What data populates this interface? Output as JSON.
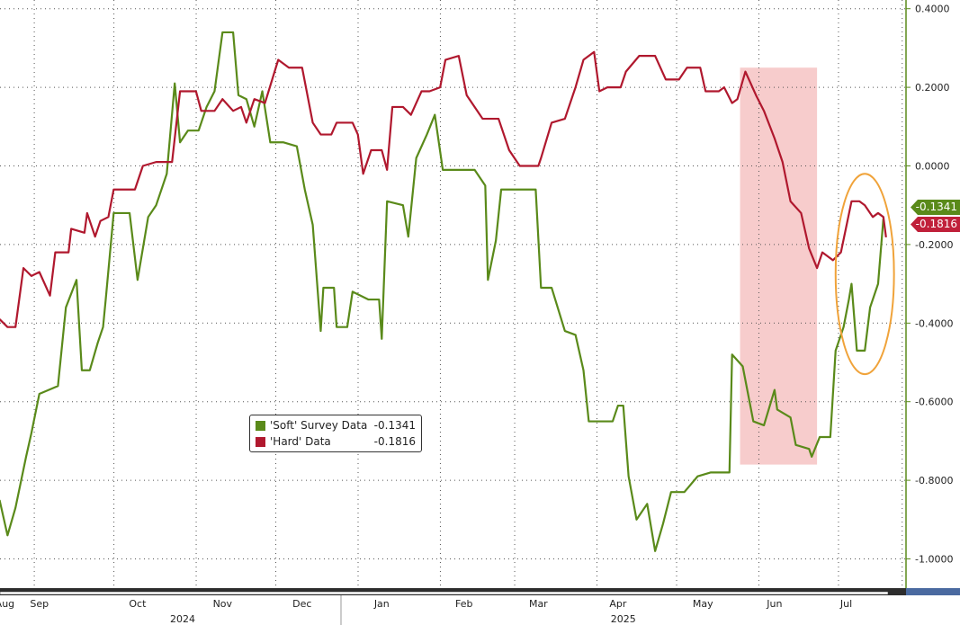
{
  "chart_data": {
    "type": "line",
    "title": "",
    "xlabel": "",
    "ylabel": "",
    "ylim": [
      -1.0,
      0.4
    ],
    "x_unit": "days since 2024-08-01",
    "yticks": [
      "0.4000",
      "0.2000",
      "0.0000",
      "-0.2000",
      "-0.4000",
      "-0.6000",
      "-0.8000",
      "-1.0000"
    ],
    "ytick_values": [
      0.4,
      0.2,
      0,
      -0.2,
      -0.4,
      -0.6,
      -0.8,
      -1.0
    ],
    "xticks": [
      {
        "label": "Aug",
        "day": 12
      },
      {
        "label": "Sep",
        "day": 25
      },
      {
        "label": "Oct",
        "day": 62
      },
      {
        "label": "Nov",
        "day": 94
      },
      {
        "label": "Dec",
        "day": 124
      },
      {
        "label": "Jan",
        "day": 154
      },
      {
        "label": "Feb",
        "day": 185
      },
      {
        "label": "Mar",
        "day": 213
      },
      {
        "label": "Apr",
        "day": 243
      },
      {
        "label": "May",
        "day": 275
      },
      {
        "label": "Jun",
        "day": 302
      },
      {
        "label": "Jul",
        "day": 329
      }
    ],
    "years": [
      {
        "label": "2024",
        "day": 79
      },
      {
        "label": "2025",
        "day": 245
      }
    ],
    "grid": true,
    "legend_position": "center-left",
    "series": [
      {
        "name": "'Soft' Survey Data",
        "last": "-0.1341",
        "color": "#5a8a1a",
        "points": [
          [
            10,
            -0.85
          ],
          [
            13,
            -0.94
          ],
          [
            16,
            -0.87
          ],
          [
            20,
            -0.74
          ],
          [
            22,
            -0.68
          ],
          [
            25,
            -0.58
          ],
          [
            32,
            -0.56
          ],
          [
            35,
            -0.36
          ],
          [
            39,
            -0.29
          ],
          [
            41,
            -0.52
          ],
          [
            44,
            -0.52
          ],
          [
            47,
            -0.45
          ],
          [
            49,
            -0.41
          ],
          [
            50,
            -0.34
          ],
          [
            53,
            -0.12
          ],
          [
            59,
            -0.12
          ],
          [
            62,
            -0.29
          ],
          [
            66,
            -0.13
          ],
          [
            69,
            -0.1
          ],
          [
            73,
            -0.02
          ],
          [
            76,
            0.21
          ],
          [
            78,
            0.06
          ],
          [
            81,
            0.09
          ],
          [
            85,
            0.09
          ],
          [
            88,
            0.15
          ],
          [
            91,
            0.19
          ],
          [
            94,
            0.34
          ],
          [
            98,
            0.34
          ],
          [
            100,
            0.18
          ],
          [
            103,
            0.17
          ],
          [
            106,
            0.1
          ],
          [
            109,
            0.19
          ],
          [
            112,
            0.06
          ],
          [
            117,
            0.06
          ],
          [
            122,
            0.05
          ],
          [
            125,
            -0.06
          ],
          [
            128,
            -0.15
          ],
          [
            131,
            -0.42
          ],
          [
            132,
            -0.31
          ],
          [
            136,
            -0.31
          ],
          [
            137,
            -0.41
          ],
          [
            141,
            -0.41
          ],
          [
            143,
            -0.32
          ],
          [
            149,
            -0.34
          ],
          [
            153,
            -0.34
          ],
          [
            154,
            -0.44
          ],
          [
            156,
            -0.09
          ],
          [
            162,
            -0.1
          ],
          [
            164,
            -0.18
          ],
          [
            167,
            0.02
          ],
          [
            171,
            0.08
          ],
          [
            174,
            0.13
          ],
          [
            177,
            -0.01
          ],
          [
            189,
            -0.01
          ],
          [
            193,
            -0.05
          ],
          [
            194,
            -0.29
          ],
          [
            197,
            -0.19
          ],
          [
            199,
            -0.06
          ],
          [
            205,
            -0.06
          ],
          [
            212,
            -0.06
          ],
          [
            214,
            -0.31
          ],
          [
            218,
            -0.31
          ],
          [
            223,
            -0.42
          ],
          [
            227,
            -0.43
          ],
          [
            230,
            -0.52
          ],
          [
            232,
            -0.65
          ],
          [
            241,
            -0.65
          ],
          [
            243,
            -0.61
          ],
          [
            245,
            -0.61
          ],
          [
            247,
            -0.79
          ],
          [
            250,
            -0.9
          ],
          [
            254,
            -0.86
          ],
          [
            257,
            -0.98
          ],
          [
            260,
            -0.91
          ],
          [
            263,
            -0.83
          ],
          [
            268,
            -0.83
          ],
          [
            273,
            -0.79
          ],
          [
            278,
            -0.78
          ],
          [
            285,
            -0.78
          ],
          [
            286,
            -0.48
          ],
          [
            290,
            -0.51
          ],
          [
            294,
            -0.65
          ],
          [
            298,
            -0.66
          ],
          [
            302,
            -0.57
          ],
          [
            303,
            -0.62
          ],
          [
            308,
            -0.64
          ],
          [
            310,
            -0.71
          ],
          [
            315,
            -0.72
          ],
          [
            316,
            -0.74
          ],
          [
            319,
            -0.69
          ],
          [
            323,
            -0.69
          ],
          [
            325,
            -0.47
          ],
          [
            328,
            -0.41
          ],
          [
            330,
            -0.34
          ],
          [
            331,
            -0.3
          ],
          [
            333,
            -0.47
          ],
          [
            336,
            -0.47
          ],
          [
            338,
            -0.36
          ],
          [
            341,
            -0.3
          ],
          [
            343,
            -0.1341
          ]
        ]
      },
      {
        "name": "'Hard' Data",
        "last": "-0.1816",
        "color": "#b0182e",
        "points": [
          [
            10,
            -0.39
          ],
          [
            13,
            -0.41
          ],
          [
            16,
            -0.41
          ],
          [
            19,
            -0.26
          ],
          [
            22,
            -0.28
          ],
          [
            25,
            -0.27
          ],
          [
            29,
            -0.33
          ],
          [
            31,
            -0.22
          ],
          [
            36,
            -0.22
          ],
          [
            37,
            -0.16
          ],
          [
            42,
            -0.17
          ],
          [
            43,
            -0.12
          ],
          [
            46,
            -0.18
          ],
          [
            48,
            -0.14
          ],
          [
            51,
            -0.13
          ],
          [
            53,
            -0.06
          ],
          [
            56,
            -0.06
          ],
          [
            61,
            -0.06
          ],
          [
            64,
            0.0
          ],
          [
            69,
            0.01
          ],
          [
            75,
            0.01
          ],
          [
            78,
            0.19
          ],
          [
            84,
            0.19
          ],
          [
            86,
            0.14
          ],
          [
            91,
            0.14
          ],
          [
            94,
            0.17
          ],
          [
            98,
            0.14
          ],
          [
            101,
            0.15
          ],
          [
            103,
            0.11
          ],
          [
            106,
            0.17
          ],
          [
            110,
            0.16
          ],
          [
            115,
            0.27
          ],
          [
            119,
            0.25
          ],
          [
            124,
            0.25
          ],
          [
            128,
            0.11
          ],
          [
            131,
            0.08
          ],
          [
            135,
            0.08
          ],
          [
            137,
            0.11
          ],
          [
            143,
            0.11
          ],
          [
            145,
            0.08
          ],
          [
            147,
            -0.02
          ],
          [
            150,
            0.04
          ],
          [
            154,
            0.04
          ],
          [
            156,
            -0.01
          ],
          [
            158,
            0.15
          ],
          [
            162,
            0.15
          ],
          [
            165,
            0.13
          ],
          [
            169,
            0.19
          ],
          [
            172,
            0.19
          ],
          [
            176,
            0.2
          ],
          [
            178,
            0.27
          ],
          [
            183,
            0.28
          ],
          [
            186,
            0.18
          ],
          [
            192,
            0.12
          ],
          [
            198,
            0.12
          ],
          [
            202,
            0.04
          ],
          [
            206,
            0.0
          ],
          [
            213,
            0.0
          ],
          [
            214,
            0.02
          ],
          [
            218,
            0.11
          ],
          [
            223,
            0.12
          ],
          [
            227,
            0.2
          ],
          [
            230,
            0.27
          ],
          [
            234,
            0.29
          ],
          [
            236,
            0.19
          ],
          [
            239,
            0.2
          ],
          [
            244,
            0.2
          ],
          [
            246,
            0.24
          ],
          [
            251,
            0.28
          ],
          [
            257,
            0.28
          ],
          [
            261,
            0.22
          ],
          [
            266,
            0.22
          ],
          [
            269,
            0.25
          ],
          [
            274,
            0.25
          ],
          [
            276,
            0.19
          ],
          [
            281,
            0.19
          ],
          [
            283,
            0.2
          ],
          [
            286,
            0.16
          ],
          [
            288,
            0.17
          ],
          [
            291,
            0.24
          ],
          [
            295,
            0.18
          ],
          [
            298,
            0.14
          ],
          [
            302,
            0.07
          ],
          [
            305,
            0.01
          ],
          [
            308,
            -0.09
          ],
          [
            312,
            -0.12
          ],
          [
            315,
            -0.21
          ],
          [
            318,
            -0.26
          ],
          [
            320,
            -0.22
          ],
          [
            324,
            -0.24
          ],
          [
            327,
            -0.22
          ],
          [
            331,
            -0.09
          ],
          [
            334,
            -0.09
          ],
          [
            336,
            -0.1
          ],
          [
            339,
            -0.13
          ],
          [
            341,
            -0.12
          ],
          [
            343,
            -0.13
          ],
          [
            344,
            -0.1816
          ]
        ]
      }
    ],
    "annotations": [
      {
        "type": "shaded-region",
        "day_range": [
          289,
          318
        ],
        "value_range": [
          -0.76,
          0.25
        ],
        "color": "#f7cccc"
      },
      {
        "type": "ellipse",
        "center_day": 336,
        "center_value": -0.275,
        "half_width_days": 11,
        "half_height_value": 0.255,
        "color": "#f0a33a"
      }
    ]
  }
}
